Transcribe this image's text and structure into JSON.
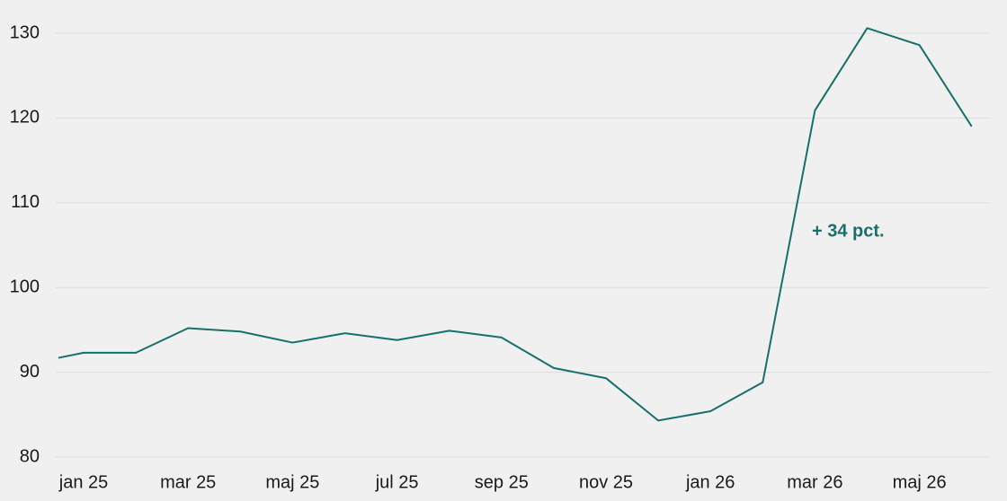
{
  "chart_data": {
    "type": "line",
    "categories": [
      null,
      "jan 25",
      null,
      "mar 25",
      null,
      "maj 25",
      null,
      "jul 25",
      null,
      "sep 25",
      null,
      "nov 25",
      null,
      "jan 26",
      null,
      "mar 26",
      null,
      "maj 26",
      null
    ],
    "series": [
      {
        "color": "#17706a",
        "values": [
          91.7,
          92.3,
          92.3,
          95.2,
          94.8,
          93.5,
          94.6,
          93.8,
          94.9,
          94.1,
          90.5,
          89.3,
          84.3,
          85.4,
          88.8,
          120.9,
          130.6,
          128.6,
          119.0
        ]
      }
    ],
    "ylim": [
      80,
      130
    ],
    "yticks": [
      80,
      90,
      100,
      110,
      120,
      130
    ],
    "grid": true,
    "annotation": "+ 34 pct."
  }
}
